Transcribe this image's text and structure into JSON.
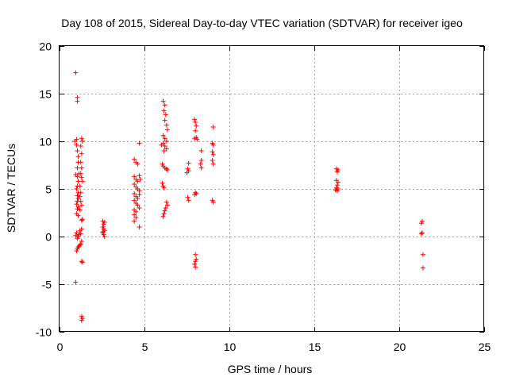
{
  "chart_data": {
    "type": "scatter",
    "title": "Day 108 of 2015, Sidereal Day-to-day VTEC variation (SDTVAR) for receiver igeo",
    "xlabel": "GPS time / hours",
    "ylabel": "SDTVAR / TECUs",
    "xlim": [
      0,
      25
    ],
    "ylim": [
      -10,
      20
    ],
    "xticks": [
      0,
      5,
      10,
      15,
      20,
      25
    ],
    "yticks": [
      -10,
      -5,
      0,
      5,
      10,
      15,
      20
    ],
    "xtick_labels": [
      "0",
      "5",
      "10",
      "15",
      "20",
      "25"
    ],
    "ytick_labels": [
      "-10",
      "-5",
      "0",
      "5",
      "10",
      "15",
      "20"
    ],
    "grid": true,
    "marker": "+",
    "series": [
      {
        "name": "SDTVAR",
        "color": "#ff0000",
        "points": [
          [
            0.95,
            17.2
          ],
          [
            1.05,
            14.6
          ],
          [
            1.05,
            14.2
          ],
          [
            0.9,
            10.0
          ],
          [
            1.0,
            10.2
          ],
          [
            1.0,
            9.6
          ],
          [
            1.05,
            9.0
          ],
          [
            1.1,
            8.4
          ],
          [
            1.1,
            7.8
          ],
          [
            1.05,
            7.2
          ],
          [
            0.95,
            6.5
          ],
          [
            1.05,
            6.3
          ],
          [
            1.15,
            6.6
          ],
          [
            1.1,
            5.8
          ],
          [
            1.05,
            5.3
          ],
          [
            1.0,
            5.0
          ],
          [
            1.1,
            4.6
          ],
          [
            1.05,
            4.3
          ],
          [
            1.1,
            4.0
          ],
          [
            1.05,
            3.7
          ],
          [
            1.0,
            3.4
          ],
          [
            1.1,
            3.1
          ],
          [
            1.05,
            2.9
          ],
          [
            1.0,
            2.4
          ],
          [
            1.1,
            2.2
          ],
          [
            1.3,
            10.3
          ],
          [
            1.35,
            10.0
          ],
          [
            1.25,
            9.5
          ],
          [
            1.3,
            8.7
          ],
          [
            1.25,
            7.8
          ],
          [
            1.3,
            7.2
          ],
          [
            1.25,
            6.6
          ],
          [
            1.3,
            6.2
          ],
          [
            1.35,
            5.8
          ],
          [
            1.2,
            5.3
          ],
          [
            1.25,
            4.6
          ],
          [
            1.2,
            4.2
          ],
          [
            1.25,
            3.7
          ],
          [
            1.3,
            3.3
          ],
          [
            1.2,
            2.8
          ],
          [
            1.35,
            1.8
          ],
          [
            1.3,
            1.7
          ],
          [
            1.3,
            0.8
          ],
          [
            1.2,
            0.6
          ],
          [
            1.25,
            0.3
          ],
          [
            1.15,
            0.2
          ],
          [
            1.1,
            0.0
          ],
          [
            1.05,
            -0.2
          ],
          [
            1.0,
            0.4
          ],
          [
            0.95,
            0.1
          ],
          [
            1.3,
            -0.5
          ],
          [
            1.25,
            -0.8
          ],
          [
            1.2,
            -0.9
          ],
          [
            1.15,
            -1.0
          ],
          [
            1.1,
            -1.1
          ],
          [
            1.05,
            -1.3
          ],
          [
            1.0,
            -1.5
          ],
          [
            1.3,
            -2.6
          ],
          [
            1.35,
            -2.7
          ],
          [
            0.95,
            -4.8
          ],
          [
            1.3,
            -8.4
          ],
          [
            1.35,
            -8.6
          ],
          [
            1.3,
            -8.8
          ],
          [
            2.55,
            1.6
          ],
          [
            2.65,
            1.5
          ],
          [
            2.6,
            1.3
          ],
          [
            2.55,
            1.0
          ],
          [
            2.6,
            0.8
          ],
          [
            2.65,
            0.6
          ],
          [
            2.55,
            0.4
          ],
          [
            2.6,
            0.2
          ],
          [
            2.65,
            0.0
          ],
          [
            2.55,
            0.5
          ],
          [
            4.4,
            8.1
          ],
          [
            4.5,
            7.8
          ],
          [
            4.6,
            7.6
          ],
          [
            4.7,
            9.8
          ],
          [
            4.4,
            6.3
          ],
          [
            4.5,
            6.0
          ],
          [
            4.6,
            5.8
          ],
          [
            4.7,
            6.4
          ],
          [
            4.75,
            6.0
          ],
          [
            4.4,
            5.5
          ],
          [
            4.5,
            5.2
          ],
          [
            4.6,
            5.0
          ],
          [
            4.7,
            4.8
          ],
          [
            4.4,
            4.5
          ],
          [
            4.5,
            4.2
          ],
          [
            4.6,
            4.0
          ],
          [
            4.7,
            4.4
          ],
          [
            4.4,
            3.8
          ],
          [
            4.5,
            3.5
          ],
          [
            4.6,
            3.3
          ],
          [
            4.7,
            3.0
          ],
          [
            4.4,
            2.8
          ],
          [
            4.5,
            2.6
          ],
          [
            4.4,
            2.3
          ],
          [
            4.5,
            2.0
          ],
          [
            4.4,
            1.6
          ],
          [
            4.7,
            1.0
          ],
          [
            6.1,
            14.2
          ],
          [
            6.2,
            13.8
          ],
          [
            6.15,
            13.2
          ],
          [
            6.25,
            12.8
          ],
          [
            6.2,
            12.2
          ],
          [
            6.3,
            11.7
          ],
          [
            6.35,
            11.2
          ],
          [
            6.1,
            10.6
          ],
          [
            6.2,
            10.3
          ],
          [
            6.3,
            10.0
          ],
          [
            6.1,
            9.8
          ],
          [
            6.2,
            9.5
          ],
          [
            6.3,
            9.2
          ],
          [
            6.0,
            9.6
          ],
          [
            6.15,
            9.0
          ],
          [
            6.05,
            7.6
          ],
          [
            6.1,
            7.4
          ],
          [
            6.2,
            7.2
          ],
          [
            6.3,
            7.1
          ],
          [
            6.35,
            7.0
          ],
          [
            6.05,
            5.6
          ],
          [
            6.1,
            5.3
          ],
          [
            6.15,
            5.1
          ],
          [
            6.3,
            3.6
          ],
          [
            6.35,
            3.3
          ],
          [
            6.25,
            3.0
          ],
          [
            6.2,
            2.7
          ],
          [
            6.15,
            2.4
          ],
          [
            6.1,
            2.1
          ],
          [
            7.6,
            7.7
          ],
          [
            7.55,
            7.1
          ],
          [
            7.6,
            6.9
          ],
          [
            7.5,
            6.7
          ],
          [
            7.55,
            4.1
          ],
          [
            7.6,
            3.8
          ],
          [
            7.95,
            12.3
          ],
          [
            8.0,
            12.0
          ],
          [
            8.05,
            11.6
          ],
          [
            8.0,
            11.1
          ],
          [
            8.05,
            10.4
          ],
          [
            8.1,
            10.2
          ],
          [
            7.95,
            10.3
          ],
          [
            8.0,
            4.6
          ],
          [
            8.05,
            4.5
          ],
          [
            7.95,
            4.4
          ],
          [
            8.0,
            -1.9
          ],
          [
            8.05,
            -2.4
          ],
          [
            8.0,
            -2.6
          ],
          [
            7.95,
            -2.9
          ],
          [
            8.0,
            -3.2
          ],
          [
            8.35,
            9.0
          ],
          [
            8.35,
            8.0
          ],
          [
            8.3,
            7.6
          ],
          [
            8.35,
            7.2
          ],
          [
            9.05,
            11.5
          ],
          [
            9.0,
            9.8
          ],
          [
            9.05,
            9.6
          ],
          [
            9.0,
            8.9
          ],
          [
            9.05,
            8.6
          ],
          [
            9.0,
            8.0
          ],
          [
            9.05,
            7.6
          ],
          [
            9.0,
            3.8
          ],
          [
            9.05,
            3.6
          ],
          [
            16.3,
            7.1
          ],
          [
            16.4,
            7.0
          ],
          [
            16.35,
            6.8
          ],
          [
            16.3,
            5.9
          ],
          [
            16.4,
            5.7
          ],
          [
            16.35,
            5.4
          ],
          [
            16.3,
            5.1
          ],
          [
            16.4,
            5.0
          ],
          [
            16.35,
            4.8
          ],
          [
            16.25,
            4.9
          ],
          [
            21.35,
            1.6
          ],
          [
            21.3,
            1.4
          ],
          [
            21.35,
            0.4
          ],
          [
            21.3,
            0.3
          ],
          [
            21.4,
            -1.9
          ],
          [
            21.4,
            -3.3
          ]
        ]
      }
    ]
  }
}
